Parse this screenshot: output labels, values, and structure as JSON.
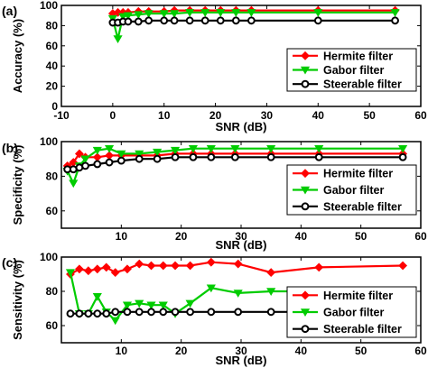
{
  "chart_data": [
    {
      "type": "line",
      "panel_label": "(a)",
      "xlabel": "SNR (dB)",
      "ylabel": "Accuracy (%)",
      "xlim": [
        -10,
        60
      ],
      "ylim": [
        0,
        100
      ],
      "xticks": [
        "-10",
        "0",
        "10",
        "20",
        "30",
        "40",
        "50",
        "60"
      ],
      "yticks": [
        "0",
        "20",
        "40",
        "60",
        "80",
        "100"
      ],
      "legend_position": "bottom-right",
      "series": [
        {
          "name": "Hermite filter",
          "color": "#ff0000",
          "marker": "diamond",
          "x": [
            0,
            1,
            2,
            3,
            5,
            7,
            10,
            12,
            15,
            18,
            21,
            24,
            27,
            40,
            55
          ],
          "y": [
            92,
            93,
            93,
            93,
            94,
            94,
            94,
            95,
            95,
            95,
            95,
            95,
            95,
            95,
            95
          ]
        },
        {
          "name": "Gabor filter",
          "color": "#00cc00",
          "marker": "triangle-down",
          "x": [
            0,
            1,
            2,
            3,
            5,
            7,
            10,
            12,
            15,
            18,
            21,
            24,
            27,
            40,
            55
          ],
          "y": [
            87,
            67,
            89,
            90,
            91,
            92,
            92,
            92,
            93,
            93,
            93,
            93,
            93,
            93,
            93
          ]
        },
        {
          "name": "Steerable filter",
          "color": "#000000",
          "marker": "circle",
          "x": [
            0,
            1,
            2,
            3,
            5,
            7,
            10,
            12,
            15,
            18,
            21,
            24,
            27,
            40,
            55
          ],
          "y": [
            83,
            83,
            84,
            84,
            84,
            85,
            85,
            85,
            85,
            85,
            85,
            85,
            85,
            85,
            85
          ]
        }
      ]
    },
    {
      "type": "line",
      "panel_label": "(b)",
      "xlabel": "SNR (dB)",
      "ylabel": "Specificity (%)",
      "xlim": [
        0,
        60
      ],
      "ylim": [
        50,
        100
      ],
      "xticks": [
        "10",
        "20",
        "30",
        "40",
        "50",
        "60"
      ],
      "yticks": [
        "60",
        "80",
        "100"
      ],
      "legend_position": "bottom-right",
      "series": [
        {
          "name": "Hermite filter",
          "color": "#ff0000",
          "marker": "diamond",
          "x": [
            1,
            2,
            3,
            4,
            6,
            8,
            10,
            13,
            16,
            19,
            22,
            25,
            29,
            35,
            43,
            57
          ],
          "y": [
            86,
            88,
            93,
            91,
            91,
            92,
            92,
            92,
            92,
            93,
            93,
            93,
            93,
            93,
            93,
            93
          ]
        },
        {
          "name": "Gabor filter",
          "color": "#00cc00",
          "marker": "triangle-down",
          "x": [
            1,
            2,
            3,
            4,
            6,
            8,
            10,
            13,
            16,
            19,
            22,
            25,
            29,
            35,
            43,
            57
          ],
          "y": [
            83,
            76,
            86,
            90,
            95,
            96,
            93,
            93,
            94,
            95,
            96,
            96,
            96,
            96,
            96,
            96
          ]
        },
        {
          "name": "Steerable filter",
          "color": "#000000",
          "marker": "circle",
          "x": [
            1,
            2,
            3,
            4,
            6,
            8,
            10,
            13,
            16,
            19,
            22,
            25,
            29,
            35,
            43,
            57
          ],
          "y": [
            84,
            84,
            85,
            86,
            87,
            88,
            89,
            90,
            90,
            91,
            91,
            91,
            91,
            91,
            91,
            91
          ]
        }
      ]
    },
    {
      "type": "line",
      "panel_label": "(c)",
      "xlabel": "SNR (dB)",
      "ylabel": "Sensitivity (%)",
      "xlim": [
        0,
        60
      ],
      "ylim": [
        50,
        100
      ],
      "xticks": [
        "10",
        "20",
        "30",
        "40",
        "50",
        "60"
      ],
      "yticks": [
        "60",
        "80",
        "100"
      ],
      "legend_position": "bottom-right",
      "series": [
        {
          "name": "Hermite filter",
          "color": "#ff0000",
          "marker": "diamond",
          "x": [
            1.5,
            3,
            4.5,
            6,
            7.5,
            9,
            11,
            13,
            15,
            17,
            19,
            21.5,
            25,
            29.5,
            35,
            43,
            57
          ],
          "y": [
            90,
            93,
            92,
            93,
            94,
            91,
            93,
            96,
            95,
            95,
            95,
            95,
            97,
            96,
            91,
            94,
            95
          ]
        },
        {
          "name": "Gabor filter",
          "color": "#00cc00",
          "marker": "triangle-down",
          "x": [
            1.5,
            3,
            4.5,
            6,
            7.5,
            9,
            11,
            13,
            15,
            17,
            19,
            21.5,
            25,
            29.5,
            35,
            43,
            57
          ],
          "y": [
            91,
            67,
            67,
            77,
            68,
            63,
            72,
            73,
            72,
            72,
            67,
            73,
            82,
            79,
            80,
            80,
            80
          ]
        },
        {
          "name": "Steerable filter",
          "color": "#000000",
          "marker": "circle",
          "x": [
            1.5,
            3,
            4.5,
            6,
            7.5,
            9,
            11,
            13,
            15,
            17,
            19,
            21.5,
            25,
            29.5,
            35,
            43,
            57
          ],
          "y": [
            67,
            67,
            67,
            67,
            67,
            68,
            68,
            68,
            68,
            68,
            68,
            68,
            68,
            68,
            68,
            68,
            68
          ]
        }
      ]
    }
  ]
}
